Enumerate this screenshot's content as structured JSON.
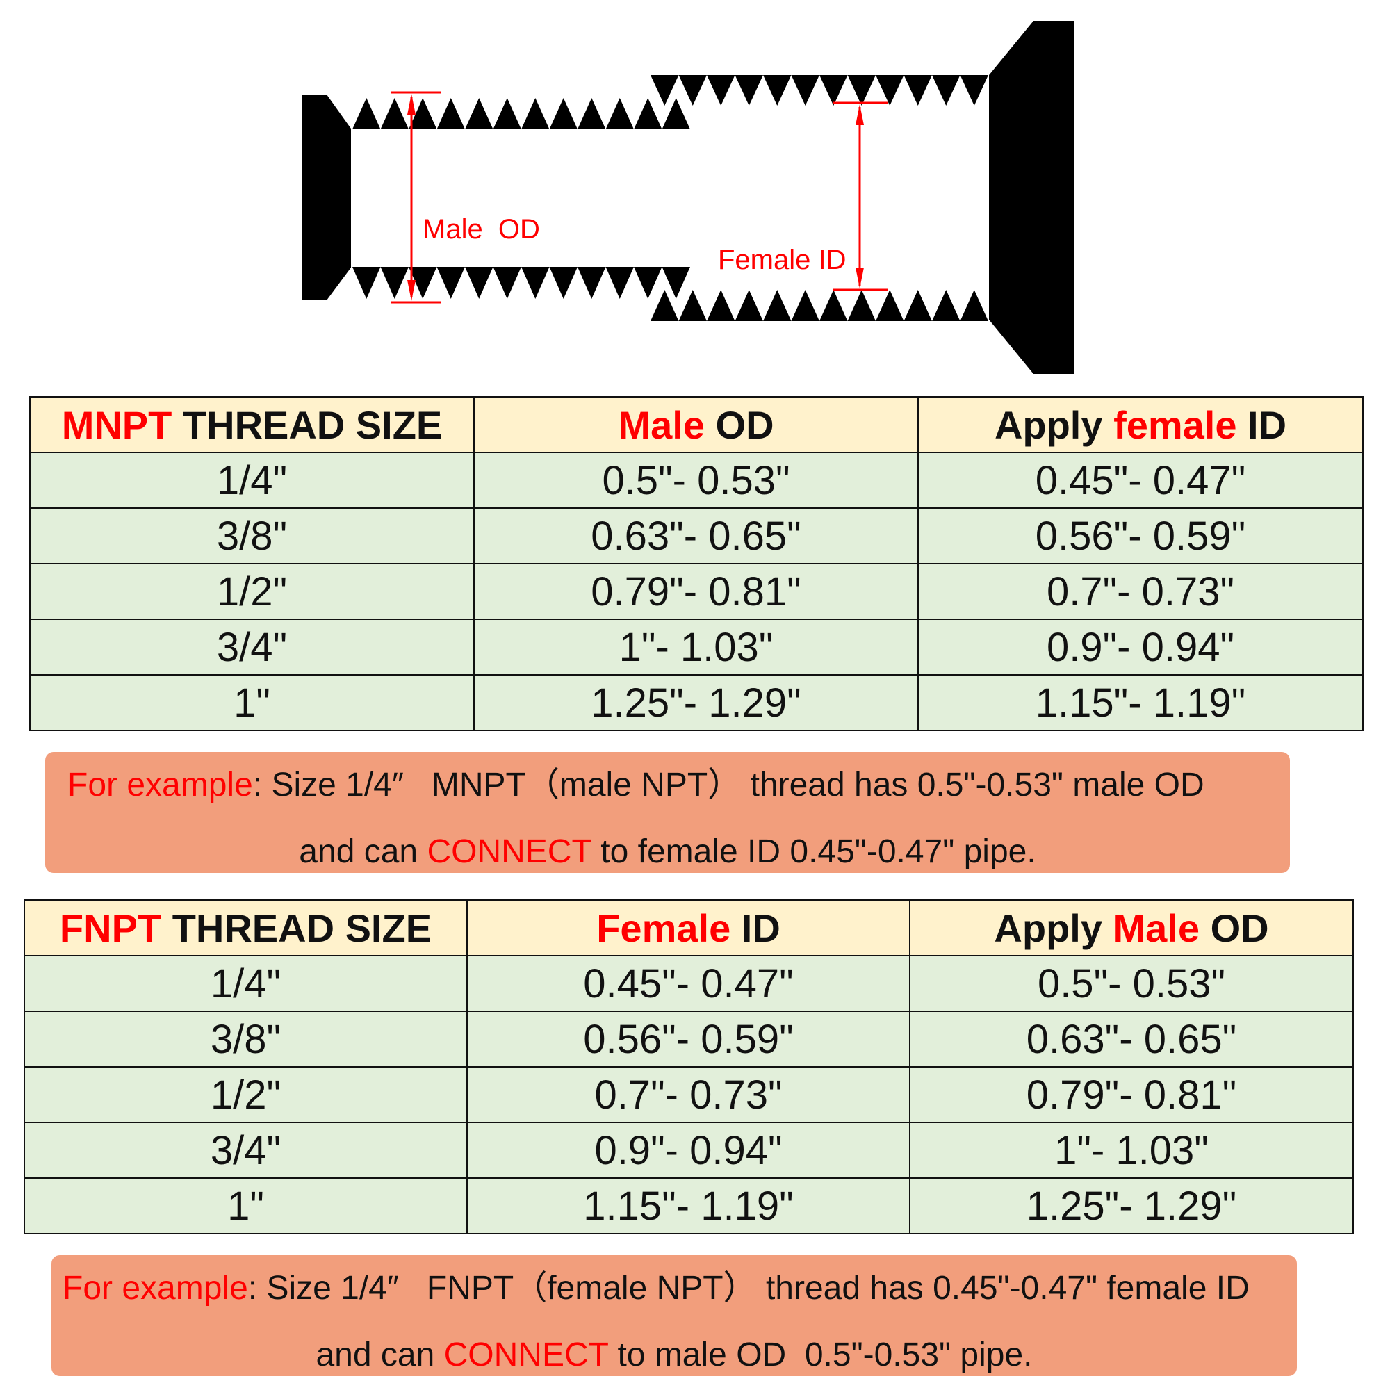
{
  "diagram": {
    "male_label": "Male  OD",
    "female_label": "Female ID",
    "accent": "#ff0000"
  },
  "mnpt": {
    "header": {
      "c1_red": "MNPT",
      "c1_black": " THREAD SIZE",
      "c2_red": "Male",
      "c2_black": " OD",
      "c3_black1": "Apply ",
      "c3_red": "female",
      "c3_black2": " ID"
    },
    "rows": [
      [
        "1/4\"",
        "0.5\"- 0.53\"",
        "0.45\"- 0.47\""
      ],
      [
        "3/8\"",
        "0.63\"- 0.65\"",
        "0.56\"- 0.59\""
      ],
      [
        "1/2\"",
        "0.79\"- 0.81\"",
        "0.7\"- 0.73\""
      ],
      [
        "3/4\"",
        "1\"- 1.03\"",
        "0.9\"- 0.94\""
      ],
      [
        "1\"",
        "1.25\"- 1.29\"",
        "1.15\"- 1.19\""
      ]
    ],
    "note": {
      "red1": "For example",
      "t1": ": Size 1/4″   MNPT（male NPT） thread has 0.5\"-0.53\" male OD",
      "t2a": "and can ",
      "red2": "CONNECT",
      "t2b": " to female ID 0.45\"-0.47\" pipe."
    }
  },
  "fnpt": {
    "header": {
      "c1_red": "FNPT",
      "c1_black": " THREAD SIZE",
      "c2_red": "Female",
      "c2_black": " ID",
      "c3_black1": "Apply ",
      "c3_red": "Male",
      "c3_black2": " OD"
    },
    "rows": [
      [
        "1/4\"",
        "0.45\"- 0.47\"",
        "0.5\"- 0.53\""
      ],
      [
        "3/8\"",
        "0.56\"- 0.59\"",
        "0.63\"- 0.65\""
      ],
      [
        "1/2\"",
        "0.7\"- 0.73\"",
        "0.79\"- 0.81\""
      ],
      [
        "3/4\"",
        "0.9\"- 0.94\"",
        "1\"- 1.03\""
      ],
      [
        "1\"",
        "1.15\"- 1.19\"",
        "1.25\"- 1.29\""
      ]
    ],
    "note": {
      "red1": "For example",
      "t1": ": Size 1/4″   FNPT（female NPT） thread has 0.45\"-0.47\" female ID",
      "t2a": "and can ",
      "red2": "CONNECT",
      "t2b": " to male OD  0.5\"-0.53\" pipe."
    }
  },
  "colors": {
    "header_bg": "#fff2cc",
    "row_bg": "#e2efda",
    "note_bg": "#f29e7c",
    "red": "#ff0000"
  }
}
